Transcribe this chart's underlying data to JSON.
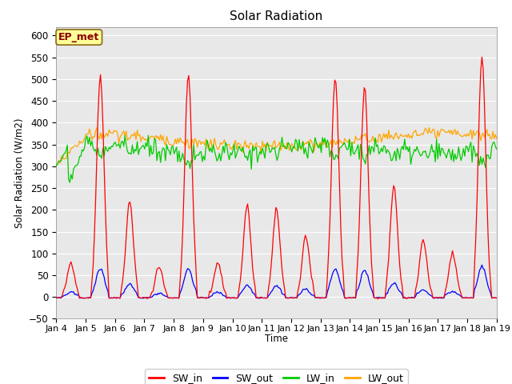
{
  "title": "Solar Radiation",
  "ylabel": "Solar Radiation (W/m2)",
  "xlabel": "Time",
  "ylim": [
    -50,
    620
  ],
  "yticks": [
    -50,
    0,
    50,
    100,
    150,
    200,
    250,
    300,
    350,
    400,
    450,
    500,
    550,
    600
  ],
  "xtick_labels": [
    "Jan 4",
    "Jan 5",
    "Jan 6",
    "Jan 7",
    "Jan 8",
    "Jan 9",
    "Jan 10",
    "Jan 11",
    "Jan 12",
    "Jan 13",
    "Jan 14",
    "Jan 15",
    "Jan 16",
    "Jan 17",
    "Jan 18",
    "Jan 19"
  ],
  "colors": {
    "SW_in": "#FF0000",
    "SW_out": "#0000FF",
    "LW_in": "#00CC00",
    "LW_out": "#FFA500"
  },
  "annotation": "EP_met",
  "annotation_color": "#8B0000",
  "annotation_bg": "#FFFF99",
  "bg_color": "#E8E8E8",
  "grid_color": "#FFFFFF",
  "sw_in_peaks": [
    80,
    510,
    220,
    70,
    510,
    80,
    210,
    200,
    140,
    505,
    480,
    255,
    130,
    100,
    555
  ],
  "n_days": 15,
  "hours_per_day": 24
}
